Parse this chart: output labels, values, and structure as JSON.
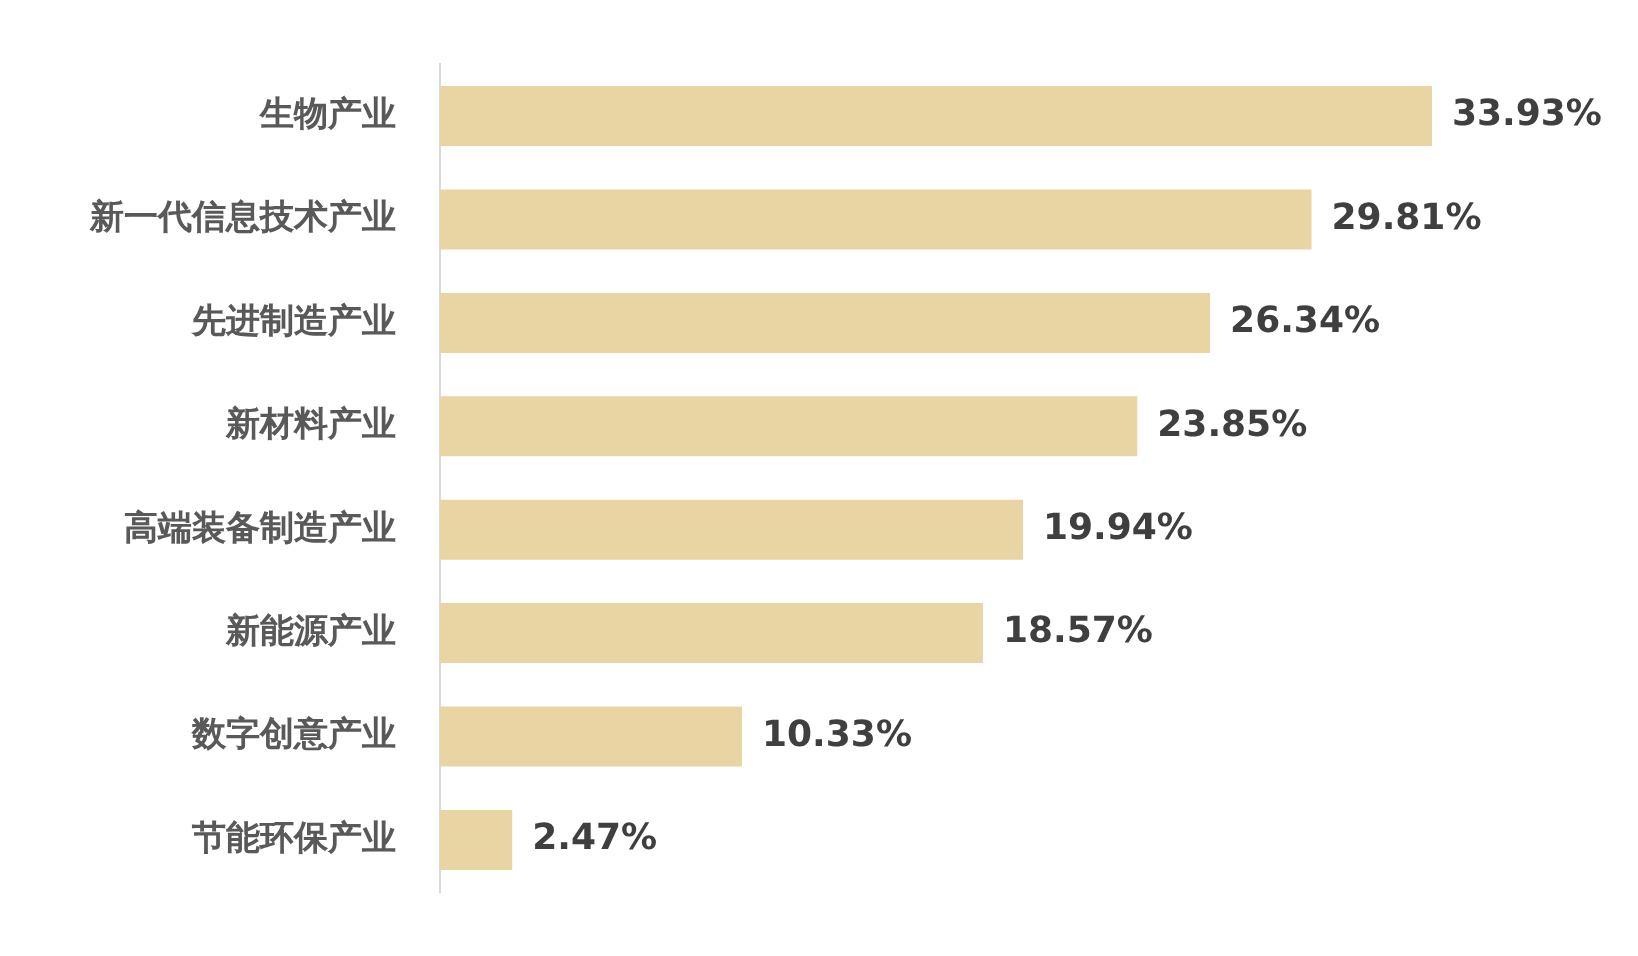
{
  "chart_data": {
    "type": "bar",
    "orientation": "horizontal",
    "categories": [
      "生物产业",
      "新一代信息技术产业",
      "先进制造产业",
      "新材料产业",
      "高端装备制造产业",
      "新能源产业",
      "数字创意产业",
      "节能环保产业"
    ],
    "values": [
      33.93,
      29.81,
      26.34,
      23.85,
      19.94,
      18.57,
      10.33,
      2.47
    ],
    "value_labels": [
      "33.93%",
      "29.81%",
      "26.34%",
      "23.85%",
      "19.94%",
      "18.57%",
      "10.33%",
      "2.47%"
    ],
    "color": "#e8d5a3",
    "grid": false,
    "legend": false
  }
}
